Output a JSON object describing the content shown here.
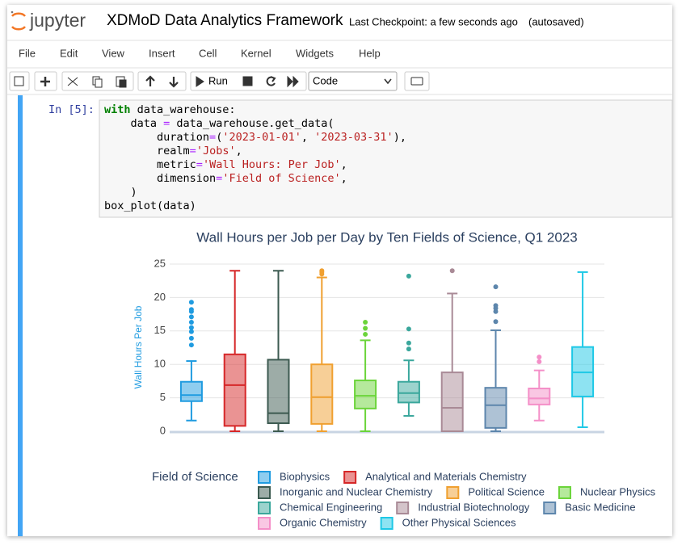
{
  "header": {
    "logo": "jupyter",
    "title": "XDMoD Data Analytics Framework",
    "checkpoint": "Last Checkpoint: a few seconds ago",
    "status": "(autosaved)"
  },
  "menu": [
    "File",
    "Edit",
    "View",
    "Insert",
    "Cell",
    "Kernel",
    "Widgets",
    "Help"
  ],
  "toolbar": {
    "run": "Run",
    "cell_type": "Code"
  },
  "cell": {
    "prompt": "In [5]:",
    "code": [
      [
        {
          "text": "with",
          "color": "#008000"
        },
        {
          "text": " data_warehouse:",
          "color": "#000000"
        }
      ],
      [
        {
          "text": "    data ",
          "color": "#000000"
        },
        {
          "text": "=",
          "color": "#aa22ff"
        },
        {
          "text": " data_warehouse.get_data(",
          "color": "#000000"
        }
      ],
      [
        {
          "text": "        duration",
          "color": "#000000"
        },
        {
          "text": "=",
          "color": "#aa22ff"
        },
        {
          "text": "(",
          "color": "#000000"
        },
        {
          "text": "'2023-01-01'",
          "color": "#ba2121"
        },
        {
          "text": ", ",
          "color": "#000000"
        },
        {
          "text": "'2023-03-31'",
          "color": "#ba2121"
        },
        {
          "text": "),",
          "color": "#000000"
        }
      ],
      [
        {
          "text": "        realm",
          "color": "#000000"
        },
        {
          "text": "=",
          "color": "#aa22ff"
        },
        {
          "text": "'Jobs'",
          "color": "#ba2121"
        },
        {
          "text": ",",
          "color": "#000000"
        }
      ],
      [
        {
          "text": "        metric",
          "color": "#000000"
        },
        {
          "text": "=",
          "color": "#aa22ff"
        },
        {
          "text": "'Wall Hours: Per Job'",
          "color": "#ba2121"
        },
        {
          "text": ",",
          "color": "#000000"
        }
      ],
      [
        {
          "text": "        dimension",
          "color": "#000000"
        },
        {
          "text": "=",
          "color": "#aa22ff"
        },
        {
          "text": "'Field of Science'",
          "color": "#ba2121"
        },
        {
          "text": ",",
          "color": "#000000"
        }
      ],
      [
        {
          "text": "    )",
          "color": "#000000"
        }
      ],
      [
        {
          "text": "box_plot(data)",
          "color": "#000000"
        }
      ]
    ]
  },
  "chart_data": {
    "type": "box",
    "title": "Wall Hours per Job per Day by Ten Fields of Science, Q1 2023",
    "y_label": "Wall Hours Per Job",
    "legend_title": "Field of Science",
    "ylim": [
      0,
      25
    ],
    "yticks": [
      0,
      5,
      10,
      15,
      20,
      25
    ],
    "grid": true,
    "series": [
      {
        "name": "Biophysics",
        "color": "#1f9be0",
        "min": 1.6,
        "q1": 4.5,
        "median": 5.4,
        "q3": 7.4,
        "max": 10.5,
        "outliers": [
          12.9,
          13.9,
          14.9,
          15.5,
          16.3,
          17.1,
          17.9,
          18.2,
          19.3
        ]
      },
      {
        "name": "Analytical and Materials Chemistry",
        "color": "#d62728",
        "min": 0,
        "q1": 0.8,
        "median": 6.9,
        "q3": 11.5,
        "max": 24.0,
        "outliers": []
      },
      {
        "name": "Inorganic and Nuclear Chemistry",
        "color": "#3c5a50",
        "min": 0,
        "q1": 1.2,
        "median": 2.7,
        "q3": 10.7,
        "max": 24.0,
        "outliers": []
      },
      {
        "name": "Political Science",
        "color": "#f0a030",
        "min": 0,
        "q1": 1.1,
        "median": 5.1,
        "q3": 10.0,
        "max": 23.0,
        "outliers": [
          23.5,
          23.8,
          24.0
        ]
      },
      {
        "name": "Nuclear Physics",
        "color": "#6bd43a",
        "min": 0,
        "q1": 3.4,
        "median": 5.3,
        "q3": 7.6,
        "max": 13.6,
        "outliers": [
          14.5,
          15.4,
          16.3
        ]
      },
      {
        "name": "Chemical Engineering",
        "color": "#3aa79c",
        "min": 2.3,
        "q1": 4.3,
        "median": 5.7,
        "q3": 7.4,
        "max": 10.6,
        "outliers": [
          12.3,
          13.2,
          15.3,
          23.2
        ]
      },
      {
        "name": "Industrial Biotechnology",
        "color": "#a98a96",
        "min": 0,
        "q1": 0,
        "median": 3.5,
        "q3": 8.8,
        "max": 20.6,
        "outliers": [
          24.0
        ]
      },
      {
        "name": "Basic Medicine",
        "color": "#5d86ac",
        "min": 0,
        "q1": 0.5,
        "median": 3.9,
        "q3": 6.5,
        "max": 15.1,
        "outliers": [
          16.4,
          17.9,
          18.4,
          18.8,
          21.6
        ]
      },
      {
        "name": "Organic Chemistry",
        "color": "#f48fc8",
        "min": 1.6,
        "q1": 4.0,
        "median": 4.9,
        "q3": 6.4,
        "max": 9.1,
        "outliers": [
          10.4,
          11.1
        ]
      },
      {
        "name": "Other Physical Sciences",
        "color": "#1ec8e6",
        "min": 0.6,
        "q1": 5.2,
        "median": 8.8,
        "q3": 12.6,
        "max": 23.8,
        "outliers": []
      }
    ]
  }
}
